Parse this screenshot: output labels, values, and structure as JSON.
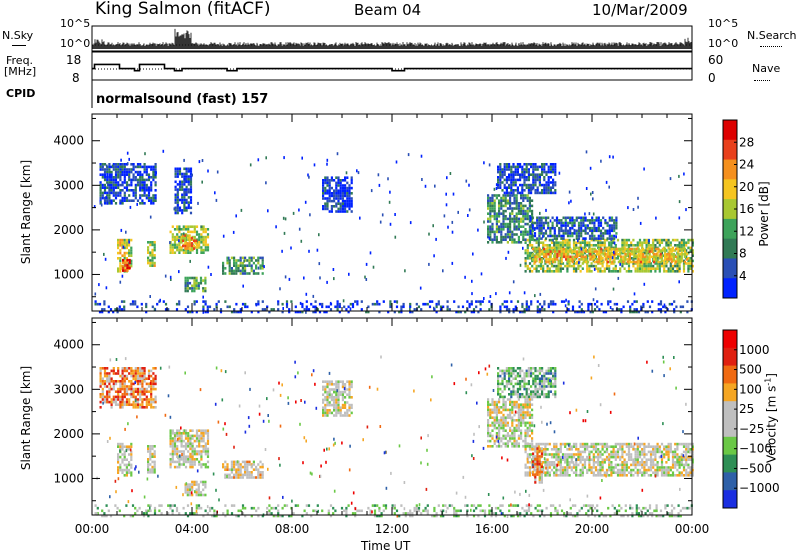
{
  "header": {
    "station": "King Salmon (fitACF)",
    "beam": "Beam 04",
    "date": "10/Mar/2009"
  },
  "summary_panel": {
    "left_labels": {
      "nsky": "N.Sky",
      "freq_line1": "Freq.",
      "freq_line2": "[MHz]",
      "cpid": "CPID"
    },
    "right_labels": {
      "nsearch": "N.Search",
      "nave": "Nave"
    },
    "noise_ticks_left": [
      "10^5",
      "10^0"
    ],
    "noise_ticks_right": [
      "10^5",
      "10^0"
    ],
    "freq_ticks": [
      "18",
      "8"
    ],
    "nave_ticks": [
      "60",
      "0"
    ],
    "cpid_text": "normalsound (fast) 157"
  },
  "chart_data": [
    {
      "type": "heatmap",
      "name": "power",
      "ylabel": "Slant Range [km]",
      "yticks": [
        "4000",
        "3000",
        "2000",
        "1000"
      ],
      "ylim": [
        180,
        4600
      ],
      "xlim": [
        0,
        24
      ],
      "xticks": [
        "00:00",
        "04:00",
        "08:00",
        "12:00",
        "16:00",
        "20:00",
        "00:00"
      ],
      "colorbar": {
        "label": "Power [dB]",
        "ticks": [
          "28",
          "24",
          "20",
          "16",
          "12",
          "8",
          "4"
        ],
        "colors": [
          "#0022ff",
          "#2a4fb5",
          "#317a55",
          "#3da35a",
          "#a8c832",
          "#f5c520",
          "#f5901e",
          "#e8401c",
          "#dd0000"
        ]
      },
      "regions": [
        {
          "t0": 1.0,
          "t1": 1.6,
          "r0": 1050,
          "r1": 1800,
          "level": 0.55
        },
        {
          "t0": 1.2,
          "t1": 1.5,
          "r0": 1100,
          "r1": 1350,
          "level": 0.9
        },
        {
          "t0": 2.2,
          "t1": 2.5,
          "r0": 1150,
          "r1": 1750,
          "level": 0.5
        },
        {
          "t0": 3.1,
          "t1": 4.6,
          "r0": 1500,
          "r1": 2100,
          "level": 0.5
        },
        {
          "t0": 3.6,
          "t1": 4.3,
          "r0": 1600,
          "r1": 1900,
          "level": 0.7
        },
        {
          "t0": 3.7,
          "t1": 4.5,
          "r0": 650,
          "r1": 950,
          "level": 0.35
        },
        {
          "t0": 5.2,
          "t1": 6.8,
          "r0": 1000,
          "r1": 1400,
          "level": 0.35
        },
        {
          "t0": 17.3,
          "t1": 24.0,
          "r0": 1050,
          "r1": 1800,
          "level": 0.45
        },
        {
          "t0": 17.6,
          "t1": 23.8,
          "r0": 1250,
          "r1": 1600,
          "level": 0.62
        },
        {
          "t0": 15.8,
          "t1": 17.6,
          "r0": 1700,
          "r1": 2800,
          "level": 0.3
        },
        {
          "t0": 17.5,
          "t1": 21.0,
          "r0": 1800,
          "r1": 2300,
          "level": 0.2
        },
        {
          "t0": 0.3,
          "t1": 2.5,
          "r0": 2600,
          "r1": 3500,
          "level": 0.15
        },
        {
          "t0": 3.3,
          "t1": 4.0,
          "r0": 2400,
          "r1": 3400,
          "level": 0.12
        },
        {
          "t0": 9.2,
          "t1": 10.4,
          "r0": 2400,
          "r1": 3200,
          "level": 0.1
        },
        {
          "t0": 16.2,
          "t1": 18.5,
          "r0": 2800,
          "r1": 3500,
          "level": 0.15
        },
        {
          "t0": 0.1,
          "t1": 24.0,
          "r0": 180,
          "r1": 420,
          "level": 0.1
        }
      ]
    },
    {
      "type": "heatmap",
      "name": "velocity",
      "ylabel": "Slant Range [km]",
      "yticks": [
        "4000",
        "3000",
        "2000",
        "1000"
      ],
      "ylim": [
        180,
        4600
      ],
      "xlim": [
        0,
        24
      ],
      "xticks": [
        "00:00",
        "04:00",
        "08:00",
        "12:00",
        "16:00",
        "20:00",
        "00:00"
      ],
      "xlabel": "Time UT",
      "colorbar": {
        "label": "Velocity [m s",
        "label_sup": "-1",
        "label_end": "]",
        "ticks": [
          "1000",
          "500",
          "100",
          "25",
          "−25",
          "−100",
          "−500",
          "−1000"
        ],
        "colors": [
          "#1a2ee0",
          "#2e60a8",
          "#2e8f55",
          "#6ac846",
          "#bfbfbf",
          "#bfbfbf",
          "#f5a623",
          "#f06a12",
          "#e02010",
          "#ee0000"
        ]
      },
      "regions": [
        {
          "t0": 1.0,
          "t1": 1.6,
          "r0": 1050,
          "r1": 1800,
          "level": 0.5
        },
        {
          "t0": 2.2,
          "t1": 2.5,
          "r0": 1150,
          "r1": 1750,
          "level": 0.5
        },
        {
          "t0": 3.1,
          "t1": 4.6,
          "r0": 1250,
          "r1": 2100,
          "level": 0.5
        },
        {
          "t0": 3.7,
          "t1": 4.5,
          "r0": 650,
          "r1": 950,
          "level": 0.5
        },
        {
          "t0": 5.2,
          "t1": 6.8,
          "r0": 1000,
          "r1": 1400,
          "level": 0.55
        },
        {
          "t0": 17.3,
          "t1": 24.0,
          "r0": 1050,
          "r1": 1800,
          "level": 0.5
        },
        {
          "t0": 15.8,
          "t1": 17.6,
          "r0": 1700,
          "r1": 2800,
          "level": 0.48
        },
        {
          "t0": 17.6,
          "t1": 18.0,
          "r0": 900,
          "r1": 1700,
          "level": 0.7
        },
        {
          "t0": 16.2,
          "t1": 18.5,
          "r0": 2800,
          "r1": 3500,
          "level": 0.35
        },
        {
          "t0": 0.3,
          "t1": 2.5,
          "r0": 2600,
          "r1": 3500,
          "level": 0.7
        },
        {
          "t0": 9.2,
          "t1": 10.4,
          "r0": 2400,
          "r1": 3200,
          "level": 0.5
        },
        {
          "t0": 0.1,
          "t1": 24.0,
          "r0": 180,
          "r1": 420,
          "level": 0.4
        }
      ]
    }
  ],
  "summary_data": {
    "freq_steps": [
      [
        0.0,
        12
      ],
      [
        0.1,
        14
      ],
      [
        1.1,
        12
      ],
      [
        1.7,
        11
      ],
      [
        1.9,
        14
      ],
      [
        2.9,
        12
      ],
      [
        3.3,
        11
      ],
      [
        3.6,
        12
      ],
      [
        3.9,
        12
      ],
      [
        4.6,
        12
      ],
      [
        5.4,
        11
      ],
      [
        5.8,
        12
      ],
      [
        11.9,
        12
      ],
      [
        12.0,
        11
      ],
      [
        12.5,
        12
      ],
      [
        16.0,
        12
      ],
      [
        24.0,
        12
      ]
    ]
  }
}
